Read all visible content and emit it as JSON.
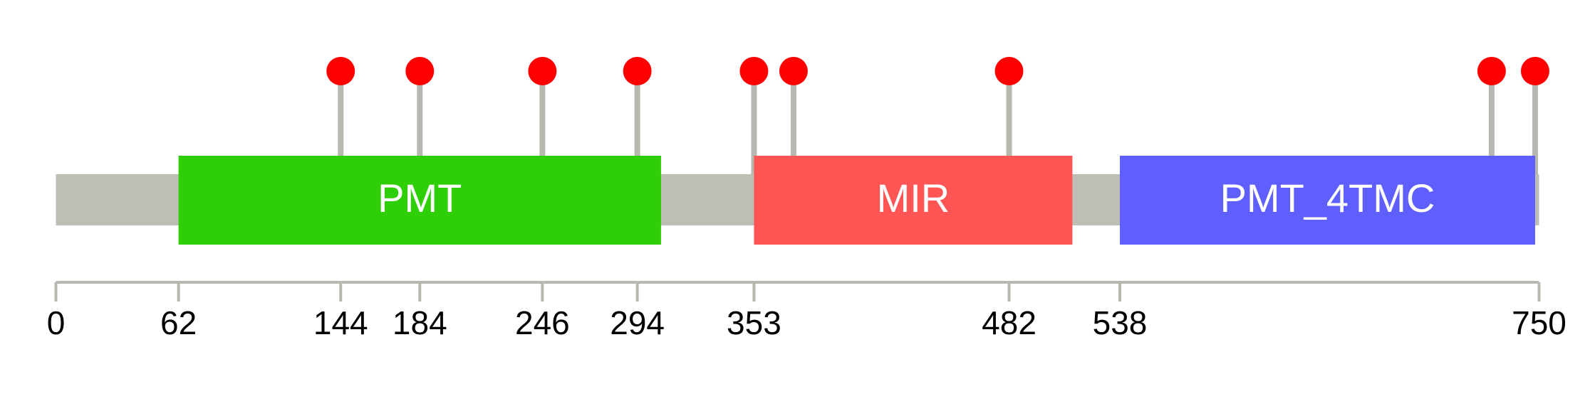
{
  "chart_data": {
    "type": "lollipop",
    "xlim": [
      0,
      750
    ],
    "xticks": [
      0,
      62,
      144,
      184,
      246,
      294,
      353,
      482,
      538,
      750
    ],
    "domains": [
      {
        "name": "PMT",
        "start": 62,
        "end": 306,
        "color": "#2ecf06"
      },
      {
        "name": "MIR",
        "start": 353,
        "end": 514,
        "color": "#ff5555"
      },
      {
        "name": "PMT_4TMC",
        "start": 538,
        "end": 748,
        "color": "#5f5ffe"
      }
    ],
    "positions": [
      144,
      184,
      246,
      294,
      353,
      373,
      482,
      726,
      748
    ],
    "marker_color": "#ff0000",
    "backbone_color": "#bebeb6"
  }
}
